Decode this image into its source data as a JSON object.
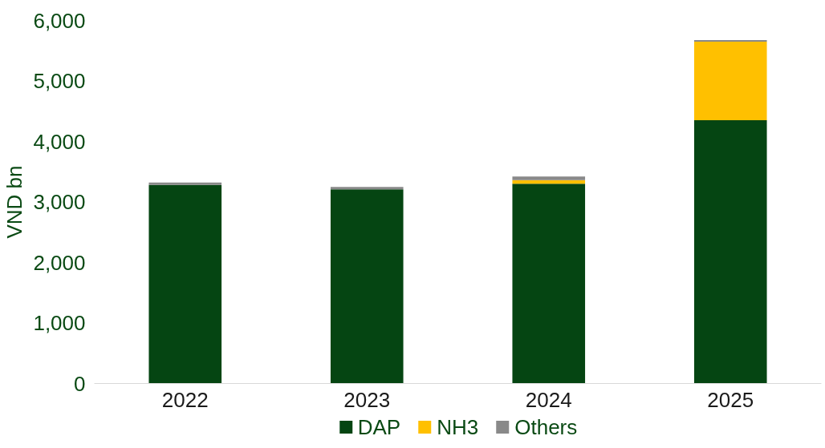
{
  "chart_data": {
    "type": "bar",
    "stacked": true,
    "ylabel": "VND bn",
    "categories": [
      "2022",
      "2023",
      "2024",
      "2025"
    ],
    "series": [
      {
        "name": "DAP",
        "color": "#054512",
        "values": [
          3280,
          3210,
          3300,
          4350
        ]
      },
      {
        "name": "NH3",
        "color": "#ffc000",
        "values": [
          0,
          0,
          60,
          1300
        ]
      },
      {
        "name": "Others",
        "color": "#898989",
        "values": [
          40,
          40,
          60,
          25
        ]
      }
    ],
    "ylim": [
      0,
      6000
    ],
    "yticks": [
      {
        "value": 0,
        "label": "0"
      },
      {
        "value": 1000,
        "label": "1,000"
      },
      {
        "value": 2000,
        "label": "2,000"
      },
      {
        "value": 3000,
        "label": "3,000"
      },
      {
        "value": 4000,
        "label": "4,000"
      },
      {
        "value": 5000,
        "label": "5,000"
      },
      {
        "value": 6000,
        "label": "6,000"
      }
    ],
    "grid": false,
    "legend": "bottom"
  }
}
